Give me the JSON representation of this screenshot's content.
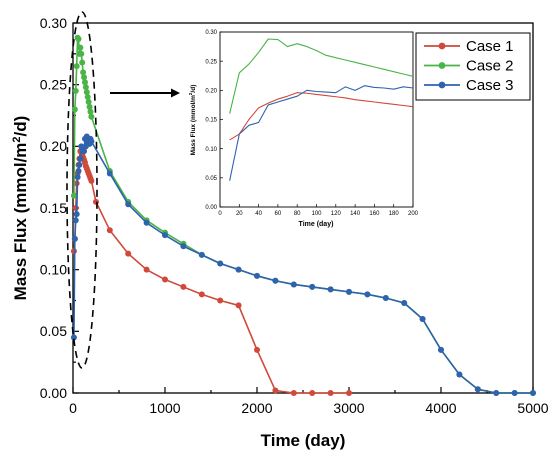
{
  "colors": {
    "case1": "#cf4a3a",
    "case2": "#4ab447",
    "case3": "#2f63ad",
    "axis": "#000000",
    "ellipse": "#000000"
  },
  "chart_data": [
    {
      "type": "line",
      "panel": "main",
      "title": "",
      "xlabel": "Time (day)",
      "ylabel_main": "Mass Flux (mmol/m",
      "ylabel_sup": "2",
      "ylabel_end": "/d)",
      "xlim": [
        0,
        5000
      ],
      "ylim": [
        0,
        0.3
      ],
      "xticks": [
        "0",
        "1000",
        "2000",
        "3000",
        "4000",
        "5000"
      ],
      "yticks": [
        "0.00",
        "0.05",
        "0.10",
        "0.15",
        "0.20",
        "0.25",
        "0.30"
      ],
      "legend": {
        "position": "top-right",
        "entries": [
          "Case 1",
          "Case 2",
          "Case 3"
        ]
      },
      "annotations": [
        "dashed ellipse around early-time peak",
        "arrow pointing to inset"
      ],
      "series": [
        {
          "name": "Case 1",
          "color_key": "case1",
          "x": [
            10,
            20,
            30,
            40,
            50,
            60,
            70,
            80,
            90,
            100,
            110,
            120,
            130,
            140,
            150,
            160,
            170,
            180,
            190,
            200,
            250,
            400,
            600,
            800,
            1000,
            1200,
            1400,
            1600,
            1800,
            2000,
            2200,
            2400,
            2600,
            2800,
            3000
          ],
          "y": [
            0.115,
            0.125,
            0.15,
            0.17,
            0.178,
            0.185,
            0.19,
            0.196,
            0.195,
            0.193,
            0.191,
            0.189,
            0.187,
            0.184,
            0.182,
            0.18,
            0.178,
            0.176,
            0.174,
            0.172,
            0.155,
            0.132,
            0.113,
            0.1,
            0.092,
            0.086,
            0.08,
            0.075,
            0.071,
            0.035,
            0.002,
            0.0,
            0.0,
            0.0,
            0.0
          ]
        },
        {
          "name": "Case 2",
          "color_key": "case2",
          "x": [
            10,
            20,
            30,
            40,
            50,
            60,
            70,
            80,
            90,
            100,
            110,
            120,
            130,
            140,
            150,
            160,
            170,
            180,
            190,
            200,
            400,
            600,
            800,
            1000,
            1200,
            1400,
            1600,
            1800,
            2000,
            2200,
            2400,
            2600,
            2800,
            3000,
            3200,
            3400,
            3600,
            3800,
            4000,
            4200,
            4400,
            4600,
            4800,
            5000
          ],
          "y": [
            0.16,
            0.23,
            0.245,
            0.265,
            0.288,
            0.287,
            0.275,
            0.28,
            0.275,
            0.268,
            0.26,
            0.256,
            0.252,
            0.248,
            0.244,
            0.24,
            0.236,
            0.232,
            0.228,
            0.224,
            0.18,
            0.155,
            0.14,
            0.13,
            0.121,
            0.112,
            0.105,
            0.1,
            0.095,
            0.091,
            0.088,
            0.086,
            0.084,
            0.082,
            0.08,
            0.077,
            0.073,
            0.06,
            0.035,
            0.015,
            0.003,
            0.0,
            0.0,
            0.0
          ]
        },
        {
          "name": "Case 3",
          "color_key": "case3",
          "x": [
            10,
            20,
            30,
            40,
            50,
            60,
            70,
            80,
            90,
            100,
            110,
            120,
            130,
            140,
            150,
            160,
            170,
            180,
            190,
            200,
            400,
            600,
            800,
            1000,
            1200,
            1400,
            1600,
            1800,
            2000,
            2200,
            2400,
            2600,
            2800,
            3000,
            3200,
            3400,
            3600,
            3800,
            4000,
            4200,
            4400,
            4600,
            4800,
            5000
          ],
          "y": [
            0.045,
            0.125,
            0.14,
            0.145,
            0.175,
            0.18,
            0.185,
            0.19,
            0.2,
            0.198,
            0.197,
            0.196,
            0.206,
            0.2,
            0.208,
            0.205,
            0.204,
            0.202,
            0.206,
            0.204,
            0.178,
            0.153,
            0.138,
            0.128,
            0.119,
            0.112,
            0.105,
            0.1,
            0.095,
            0.091,
            0.088,
            0.086,
            0.084,
            0.082,
            0.08,
            0.077,
            0.073,
            0.06,
            0.035,
            0.015,
            0.003,
            0.0,
            0.0,
            0.0
          ]
        }
      ]
    },
    {
      "type": "line",
      "panel": "inset",
      "title": "",
      "xlabel": "Time (day)",
      "ylabel_main": "Mass Flux (mmol/m",
      "ylabel_sup": "2",
      "ylabel_end": "/d)",
      "xlim": [
        0,
        200
      ],
      "ylim": [
        0,
        0.3
      ],
      "xticks": [
        "0",
        "20",
        "40",
        "60",
        "80",
        "100",
        "120",
        "140",
        "160",
        "180",
        "200"
      ],
      "yticks": [
        "0.00",
        "0.05",
        "0.10",
        "0.15",
        "0.20",
        "0.25",
        "0.30"
      ],
      "series": [
        {
          "name": "Case 1",
          "color_key": "case1",
          "x": [
            10,
            20,
            30,
            40,
            50,
            60,
            70,
            80,
            90,
            100,
            110,
            120,
            130,
            140,
            150,
            160,
            170,
            180,
            190,
            200
          ],
          "y": [
            0.115,
            0.125,
            0.15,
            0.17,
            0.178,
            0.185,
            0.19,
            0.196,
            0.195,
            0.193,
            0.191,
            0.189,
            0.187,
            0.184,
            0.182,
            0.18,
            0.178,
            0.176,
            0.174,
            0.172
          ]
        },
        {
          "name": "Case 2",
          "color_key": "case2",
          "x": [
            10,
            20,
            30,
            40,
            50,
            60,
            70,
            80,
            90,
            100,
            110,
            120,
            130,
            140,
            150,
            160,
            170,
            180,
            190,
            200
          ],
          "y": [
            0.16,
            0.23,
            0.245,
            0.265,
            0.288,
            0.287,
            0.275,
            0.28,
            0.275,
            0.268,
            0.26,
            0.256,
            0.252,
            0.248,
            0.244,
            0.24,
            0.236,
            0.232,
            0.228,
            0.224
          ]
        },
        {
          "name": "Case 3",
          "color_key": "case3",
          "x": [
            10,
            20,
            30,
            40,
            50,
            60,
            70,
            80,
            90,
            100,
            110,
            120,
            130,
            140,
            150,
            160,
            170,
            180,
            190,
            200
          ],
          "y": [
            0.045,
            0.125,
            0.14,
            0.145,
            0.175,
            0.18,
            0.185,
            0.19,
            0.2,
            0.198,
            0.197,
            0.196,
            0.206,
            0.2,
            0.208,
            0.205,
            0.204,
            0.202,
            0.206,
            0.204
          ]
        }
      ]
    }
  ]
}
